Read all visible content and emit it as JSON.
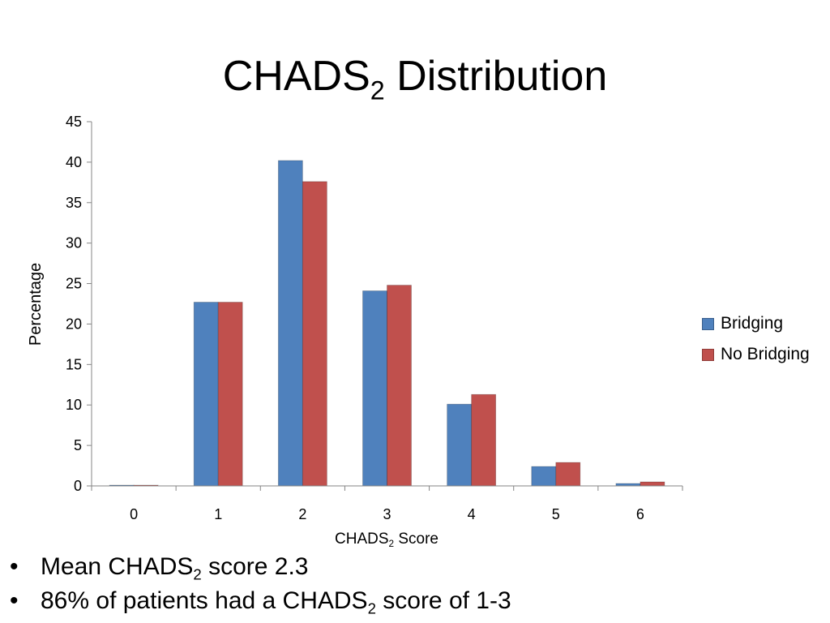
{
  "title": {
    "main": "CHADS",
    "sub": "2",
    "rest": " Distribution"
  },
  "colors": {
    "bridging": "#4F81BD",
    "no_bridging": "#C0504D",
    "axis": "#868686"
  },
  "chart_data": {
    "type": "bar",
    "categories": [
      "0",
      "1",
      "2",
      "3",
      "4",
      "5",
      "6"
    ],
    "series": [
      {
        "name": "Bridging",
        "values": [
          0.1,
          22.7,
          40.2,
          24.1,
          10.1,
          2.4,
          0.3
        ]
      },
      {
        "name": "No Bridging",
        "values": [
          0.1,
          22.7,
          37.6,
          24.8,
          11.3,
          2.9,
          0.5
        ]
      }
    ],
    "ylim": [
      0,
      45
    ],
    "yticks": [
      0,
      5,
      10,
      15,
      20,
      25,
      30,
      35,
      40,
      45
    ],
    "ylabel": "Percentage",
    "xlabel": {
      "main": "CHADS",
      "sub": "2",
      "rest": " Score"
    },
    "legend": "right",
    "grid": false
  },
  "bullets": [
    {
      "pre": "Mean CHADS",
      "sub": "2",
      "post": " score 2.3"
    },
    {
      "pre": "86% of patients had a CHADS",
      "sub": "2",
      "post": " score of 1-3"
    }
  ],
  "bullet_glyph": "•"
}
